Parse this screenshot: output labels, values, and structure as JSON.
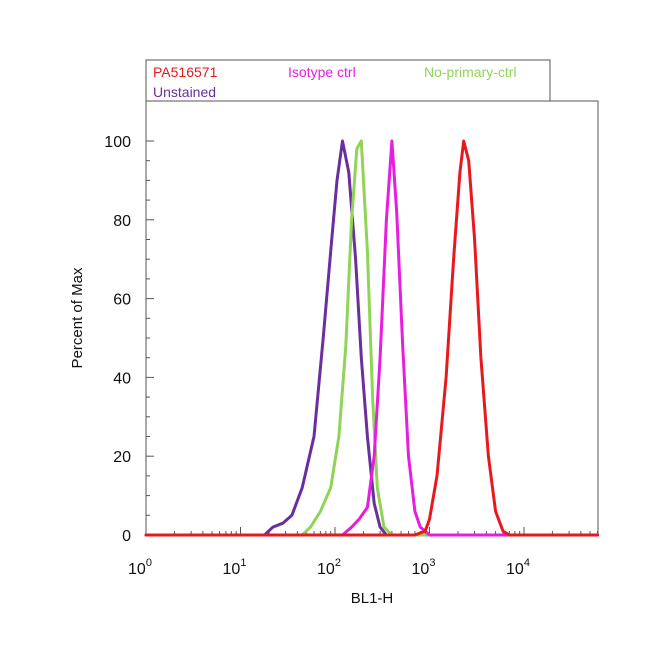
{
  "chart_data": {
    "type": "line",
    "xlabel": "BL1-H",
    "ylabel": "Percent of Max",
    "x_scale": "log",
    "xlim": [
      1,
      60000
    ],
    "ylim": [
      0,
      110
    ],
    "x_ticks": [
      {
        "value": 1,
        "base": "10",
        "exp": "0"
      },
      {
        "value": 10,
        "base": "10",
        "exp": "1"
      },
      {
        "value": 100,
        "base": "10",
        "exp": "2"
      },
      {
        "value": 1000,
        "base": "10",
        "exp": "3"
      },
      {
        "value": 10000,
        "base": "10",
        "exp": "4"
      }
    ],
    "y_ticks": [
      0,
      20,
      40,
      60,
      80,
      100
    ],
    "grid": false,
    "legend_position": "top",
    "series": [
      {
        "name": "PA516571",
        "color": "#e8191d",
        "x": [
          1,
          700,
          900,
          1000,
          1200,
          1500,
          1800,
          2100,
          2300,
          2600,
          3000,
          3500,
          4200,
          5000,
          6000,
          7000,
          60000
        ],
        "y": [
          0,
          0,
          1,
          4,
          15,
          40,
          70,
          92,
          100,
          95,
          75,
          45,
          20,
          6,
          1,
          0,
          0
        ]
      },
      {
        "name": "Isotype ctrl",
        "color": "#e61ee0",
        "x": [
          1,
          120,
          150,
          180,
          220,
          260,
          300,
          350,
          400,
          450,
          520,
          600,
          700,
          800,
          900,
          1000,
          60000
        ],
        "y": [
          0,
          0,
          2,
          4,
          7,
          20,
          45,
          80,
          100,
          82,
          48,
          20,
          6,
          2,
          1,
          0,
          0
        ]
      },
      {
        "name": "No-primary-ctrl",
        "color": "#8fd457",
        "x": [
          1,
          45,
          55,
          70,
          90,
          110,
          130,
          150,
          170,
          190,
          220,
          250,
          280,
          330,
          400,
          60000
        ],
        "y": [
          0,
          0,
          2,
          6,
          12,
          25,
          48,
          80,
          98,
          100,
          72,
          35,
          12,
          2,
          0,
          0
        ]
      },
      {
        "name": "Unstained",
        "color": "#6a2e9e",
        "x": [
          1,
          18,
          22,
          28,
          35,
          45,
          60,
          75,
          90,
          105,
          120,
          140,
          165,
          190,
          220,
          260,
          300,
          350,
          60000
        ],
        "y": [
          0,
          0,
          2,
          3,
          5,
          12,
          25,
          50,
          72,
          90,
          100,
          92,
          70,
          45,
          25,
          8,
          2,
          0,
          0
        ]
      }
    ]
  }
}
